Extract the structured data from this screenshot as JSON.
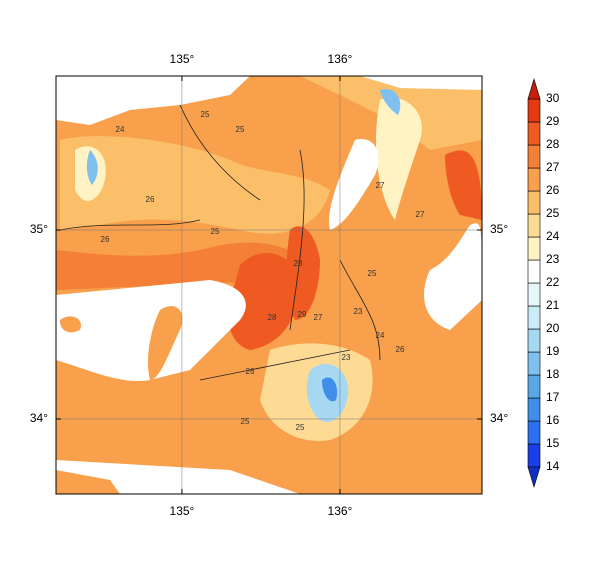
{
  "map": {
    "lon_range": [
      134.203,
      136.899
    ],
    "lat_range": [
      33.603,
      35.815
    ],
    "lon_ticks": [
      {
        "value": 135,
        "label": "135°"
      },
      {
        "value": 136,
        "label": "136°"
      }
    ],
    "lat_ticks": [
      {
        "value": 35,
        "label": "35°"
      },
      {
        "value": 34,
        "label": "34°"
      }
    ],
    "grid": true,
    "contour_labels": [
      "24",
      "25",
      "26",
      "25",
      "25",
      "26",
      "27",
      "28",
      "29",
      "28",
      "27",
      "23",
      "24",
      "25",
      "26",
      "25",
      "27",
      "26",
      "25",
      "23"
    ]
  },
  "colorbar": {
    "levels": [
      14,
      15,
      16,
      17,
      18,
      19,
      20,
      21,
      22,
      23,
      24,
      25,
      26,
      27,
      28,
      29,
      30
    ],
    "colors": [
      "#1a3fe8",
      "#2c6ff0",
      "#3f8ee8",
      "#5aa7e8",
      "#7fc0ee",
      "#a6d8f2",
      "#c9ecf6",
      "#e6f7fa",
      "#ffffff",
      "#fff3c4",
      "#fddb95",
      "#fbbf6a",
      "#f8a04c",
      "#f47f36",
      "#ee5a22",
      "#e33a12"
    ],
    "under_color": "#1030c8",
    "over_color": "#c81e0c"
  }
}
